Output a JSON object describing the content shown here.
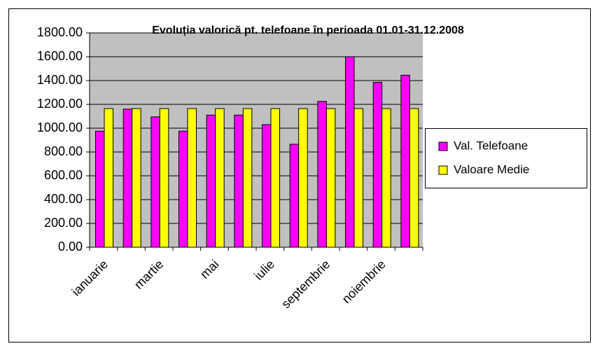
{
  "chart_data": {
    "type": "bar",
    "title": "Evoluția valorică pt. telefoane în perioada 01.01-31.12.2008",
    "categories": [
      "ianuarie",
      null,
      "martie",
      null,
      "mai",
      null,
      "iulie",
      null,
      "septembrie",
      null,
      "noiembrie",
      null
    ],
    "series": [
      {
        "name": "Val. Telefoane",
        "color": "#ff00ff",
        "values": [
          975,
          1160,
          1095,
          975,
          1110,
          1110,
          1030,
          865,
          1225,
          1600,
          1385,
          1445
        ]
      },
      {
        "name": "Valoare Medie",
        "color": "#ffff00",
        "values": [
          1164.58,
          1164.58,
          1164.58,
          1164.58,
          1164.58,
          1164.58,
          1164.58,
          1164.58,
          1164.58,
          1164.58,
          1164.58,
          1164.58
        ]
      }
    ],
    "ylim": [
      0,
      1800
    ],
    "yticks": [
      {
        "value": 0,
        "label": "0.00"
      },
      {
        "value": 200,
        "label": "200.00"
      },
      {
        "value": 400,
        "label": "400.00"
      },
      {
        "value": 600,
        "label": "600.00"
      },
      {
        "value": 800,
        "label": "800.00"
      },
      {
        "value": 1000,
        "label": "1000.00"
      },
      {
        "value": 1200,
        "label": "1200.00"
      },
      {
        "value": 1400,
        "label": "1400.00"
      },
      {
        "value": 1600,
        "label": "1600.00"
      },
      {
        "value": 1800,
        "label": "1800.00"
      }
    ],
    "grid": true,
    "legend": "right"
  }
}
